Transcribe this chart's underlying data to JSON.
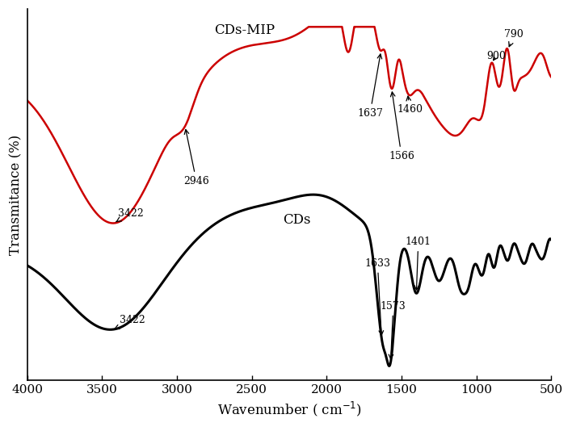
{
  "xlabel": "Wavenumber ( cm⁻¹)",
  "ylabel": "Transmitance (%)",
  "xlim": [
    4000,
    500
  ],
  "x_ticks": [
    4000,
    3500,
    3000,
    2500,
    2000,
    1500,
    1000,
    500
  ],
  "mip_color": "#cc0000",
  "cds_color": "#000000",
  "mip_label": "CDs-MIP",
  "cds_label": "CDs"
}
